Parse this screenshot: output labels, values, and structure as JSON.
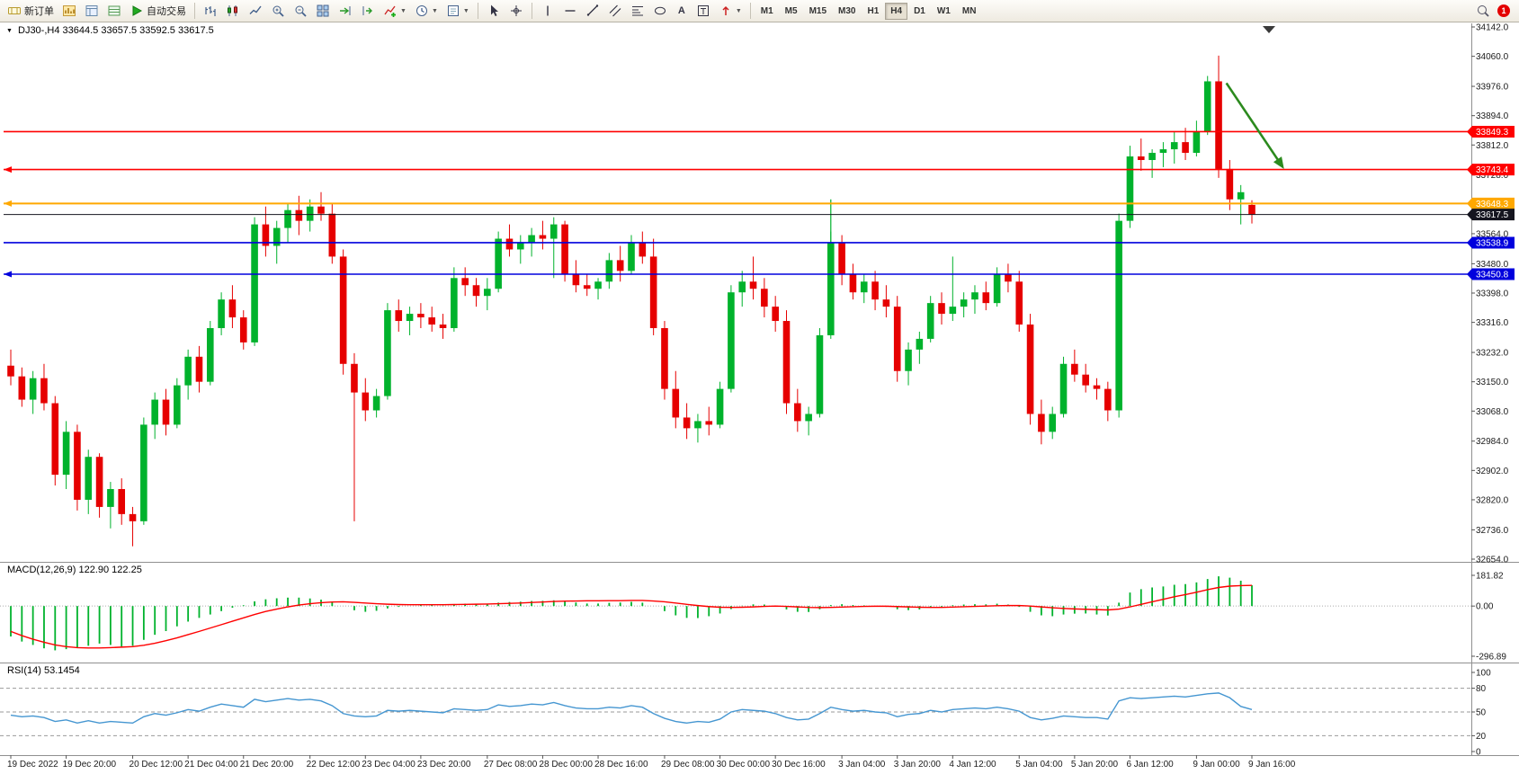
{
  "colors": {
    "up": "#00b22c",
    "down": "#e60000",
    "macd_hist": "#00b22c",
    "macd_signal": "#ff0000",
    "rsi_line": "#4596d1",
    "axis_text": "#1a1a1a",
    "annotation_arrow": "#2c8a1e",
    "annotation_vline": "#00b22c"
  },
  "toolbar": {
    "new_order_label": "新订单",
    "auto_trading_label": "自动交易",
    "timeframes": [
      "M1",
      "M5",
      "M15",
      "M30",
      "H1",
      "H4",
      "D1",
      "W1",
      "MN"
    ],
    "active_timeframe": "H4",
    "notification_count": "1"
  },
  "chart": {
    "title": "DJ30-,H4 33644.5 33657.5 33592.5 33617.5",
    "macd_label": "MACD(12,26,9) 122.90 122.25",
    "rsi_label": "RSI(14) 53.1454"
  },
  "chart_data": {
    "type": "candlestick",
    "symbol": "DJ30-",
    "timeframe": "H4",
    "ohlc_current": {
      "open": 33644.5,
      "high": 33657.5,
      "low": 33592.5,
      "close": 33617.5
    },
    "price_ylim": [
      32654.0,
      34142.0
    ],
    "price_ticks": [
      "34142.0",
      "34060.0",
      "33976.0",
      "33894.0",
      "33812.0",
      "33728.0",
      "33644.0",
      "33564.0",
      "33480.0",
      "33398.0",
      "33316.0",
      "33232.0",
      "33150.0",
      "33068.0",
      "32984.0",
      "32902.0",
      "32820.0",
      "32736.0",
      "32654.0"
    ],
    "hlines": [
      {
        "price": 33849.3,
        "label": "33849.3",
        "color": "#ff0000",
        "width": 1.6,
        "marker": false
      },
      {
        "price": 33743.4,
        "label": "33743.4",
        "color": "#ff0000",
        "width": 1.6,
        "marker": true
      },
      {
        "price": 33648.3,
        "label": "33648.3",
        "color": "#ffa800",
        "width": 2,
        "marker": true
      },
      {
        "price": 33617.5,
        "label": "33617.5",
        "color": "#15151f",
        "width": 1,
        "marker": false
      },
      {
        "price": 33538.9,
        "label": "33538.9",
        "color": "#0000dd",
        "width": 1.6,
        "marker": false
      },
      {
        "price": 33450.8,
        "label": "33450.8",
        "color": "#0000dd",
        "width": 1.6,
        "marker": true
      }
    ],
    "candles": [
      [
        33195,
        33240,
        33140,
        33165
      ],
      [
        33165,
        33190,
        33080,
        33100
      ],
      [
        33100,
        33180,
        33060,
        33160
      ],
      [
        33160,
        33200,
        33070,
        33090
      ],
      [
        33090,
        33110,
        32860,
        32890
      ],
      [
        32890,
        33040,
        32850,
        33010
      ],
      [
        33010,
        33030,
        32790,
        32820
      ],
      [
        32820,
        32960,
        32780,
        32940
      ],
      [
        32940,
        32950,
        32770,
        32800
      ],
      [
        32800,
        32870,
        32740,
        32850
      ],
      [
        32850,
        32880,
        32750,
        32780
      ],
      [
        32780,
        32800,
        32690,
        32760
      ],
      [
        32760,
        33050,
        32750,
        33030
      ],
      [
        33030,
        33120,
        32990,
        33100
      ],
      [
        33100,
        33130,
        33000,
        33030
      ],
      [
        33030,
        33160,
        33020,
        33140
      ],
      [
        33140,
        33240,
        33100,
        33220
      ],
      [
        33220,
        33250,
        33120,
        33150
      ],
      [
        33150,
        33320,
        33140,
        33300
      ],
      [
        33300,
        33400,
        33280,
        33380
      ],
      [
        33380,
        33420,
        33300,
        33330
      ],
      [
        33330,
        33350,
        33240,
        33260
      ],
      [
        33260,
        33610,
        33250,
        33590
      ],
      [
        33590,
        33640,
        33500,
        33530
      ],
      [
        33530,
        33600,
        33480,
        33580
      ],
      [
        33580,
        33650,
        33540,
        33630
      ],
      [
        33630,
        33670,
        33560,
        33600
      ],
      [
        33600,
        33660,
        33570,
        33640
      ],
      [
        33640,
        33680,
        33600,
        33620
      ],
      [
        33620,
        33650,
        33480,
        33500
      ],
      [
        33500,
        33520,
        33170,
        33200
      ],
      [
        33200,
        33230,
        32760,
        33120
      ],
      [
        33120,
        33160,
        33040,
        33070
      ],
      [
        33070,
        33130,
        33050,
        33110
      ],
      [
        33110,
        33370,
        33100,
        33350
      ],
      [
        33350,
        33380,
        33290,
        33320
      ],
      [
        33320,
        33360,
        33280,
        33340
      ],
      [
        33340,
        33370,
        33300,
        33330
      ],
      [
        33330,
        33360,
        33290,
        33310
      ],
      [
        33310,
        33340,
        33270,
        33300
      ],
      [
        33300,
        33470,
        33290,
        33440
      ],
      [
        33440,
        33470,
        33390,
        33420
      ],
      [
        33420,
        33440,
        33360,
        33390
      ],
      [
        33390,
        33440,
        33350,
        33410
      ],
      [
        33410,
        33570,
        33400,
        33550
      ],
      [
        33550,
        33590,
        33500,
        33520
      ],
      [
        33520,
        33560,
        33480,
        33540
      ],
      [
        33540,
        33580,
        33500,
        33560
      ],
      [
        33560,
        33600,
        33520,
        33550
      ],
      [
        33550,
        33610,
        33440,
        33590
      ],
      [
        33590,
        33600,
        33430,
        33450
      ],
      [
        33450,
        33490,
        33400,
        33420
      ],
      [
        33420,
        33450,
        33390,
        33410
      ],
      [
        33410,
        33440,
        33380,
        33430
      ],
      [
        33430,
        33510,
        33410,
        33490
      ],
      [
        33490,
        33530,
        33430,
        33460
      ],
      [
        33460,
        33560,
        33450,
        33540
      ],
      [
        33540,
        33570,
        33480,
        33500
      ],
      [
        33500,
        33550,
        33280,
        33300
      ],
      [
        33300,
        33320,
        33100,
        33130
      ],
      [
        33130,
        33180,
        33020,
        33050
      ],
      [
        33050,
        33090,
        32990,
        33020
      ],
      [
        33020,
        33060,
        32980,
        33040
      ],
      [
        33040,
        33080,
        33000,
        33030
      ],
      [
        33030,
        33150,
        33020,
        33130
      ],
      [
        33130,
        33420,
        33120,
        33400
      ],
      [
        33400,
        33460,
        33360,
        33430
      ],
      [
        33430,
        33500,
        33380,
        33410
      ],
      [
        33410,
        33440,
        33330,
        33360
      ],
      [
        33360,
        33390,
        33290,
        33320
      ],
      [
        33320,
        33350,
        33060,
        33090
      ],
      [
        33090,
        33130,
        33010,
        33040
      ],
      [
        33040,
        33080,
        33000,
        33060
      ],
      [
        33060,
        33300,
        33050,
        33280
      ],
      [
        33280,
        33570,
        33270,
        33540
      ],
      [
        33540,
        33560,
        33420,
        33450
      ],
      [
        33450,
        33480,
        33380,
        33400
      ],
      [
        33400,
        33450,
        33370,
        33430
      ],
      [
        33430,
        33460,
        33350,
        33380
      ],
      [
        33380,
        33420,
        33330,
        33360
      ],
      [
        33360,
        33390,
        33150,
        33180
      ],
      [
        33180,
        33260,
        33140,
        33240
      ],
      [
        33240,
        33290,
        33200,
        33270
      ],
      [
        33270,
        33390,
        33260,
        33370
      ],
      [
        33370,
        33400,
        33310,
        33340
      ],
      [
        33340,
        33500,
        33320,
        33360
      ],
      [
        33360,
        33400,
        33330,
        33380
      ],
      [
        33380,
        33420,
        33340,
        33400
      ],
      [
        33400,
        33430,
        33350,
        33370
      ],
      [
        33370,
        33470,
        33360,
        33450
      ],
      [
        33450,
        33480,
        33400,
        33430
      ],
      [
        33430,
        33460,
        33290,
        33310
      ],
      [
        33310,
        33340,
        33030,
        33060
      ],
      [
        33060,
        33100,
        32975,
        33010
      ],
      [
        33010,
        33080,
        32990,
        33060
      ],
      [
        33060,
        33220,
        33050,
        33200
      ],
      [
        33200,
        33240,
        33150,
        33170
      ],
      [
        33170,
        33200,
        33120,
        33140
      ],
      [
        33140,
        33160,
        33100,
        33130
      ],
      [
        33130,
        33150,
        33040,
        33070
      ],
      [
        33070,
        33620,
        33050,
        33600
      ],
      [
        33600,
        33810,
        33580,
        33780
      ],
      [
        33780,
        33830,
        33740,
        33770
      ],
      [
        33770,
        33800,
        33720,
        33790
      ],
      [
        33790,
        33820,
        33750,
        33800
      ],
      [
        33800,
        33850,
        33760,
        33820
      ],
      [
        33820,
        33860,
        33770,
        33790
      ],
      [
        33790,
        33880,
        33780,
        33850
      ],
      [
        33850,
        34005,
        33840,
        33990
      ],
      [
        33990,
        34062,
        33720,
        33745
      ],
      [
        33745,
        33770,
        33630,
        33660
      ],
      [
        33660,
        33700,
        33590,
        33680
      ],
      [
        33644.5,
        33657.5,
        33592.5,
        33617.5
      ]
    ],
    "time_labels": [
      "19 Dec 2022",
      "19 Dec 20:00",
      "20 Dec 12:00",
      "21 Dec 04:00",
      "21 Dec 20:00",
      "22 Dec 12:00",
      "23 Dec 04:00",
      "23 Dec 20:00",
      "27 Dec 08:00",
      "28 Dec 00:00",
      "28 Dec 16:00",
      "29 Dec 08:00",
      "30 Dec 00:00",
      "30 Dec 16:00",
      "3 Jan 04:00",
      "3 Jan 20:00",
      "4 Jan 12:00",
      "5 Jan 04:00",
      "5 Jan 20:00",
      "6 Jan 12:00",
      "9 Jan 00:00",
      "9 Jan 16:00"
    ],
    "macd": {
      "ylim": [
        -296.89,
        181.82
      ],
      "ticks": [
        "181.82",
        "0.00",
        "-296.89"
      ],
      "histogram": [
        -180,
        -210,
        -230,
        -250,
        -262,
        -255,
        -245,
        -235,
        -222,
        -230,
        -240,
        -235,
        -200,
        -170,
        -148,
        -120,
        -92,
        -70,
        -50,
        -30,
        -10,
        5,
        28,
        40,
        46,
        50,
        50,
        45,
        38,
        22,
        0,
        -25,
        -34,
        -28,
        -14,
        -5,
        0,
        5,
        6,
        2,
        10,
        14,
        11,
        10,
        20,
        24,
        26,
        30,
        31,
        34,
        30,
        21,
        15,
        15,
        19,
        21,
        25,
        20,
        0,
        -30,
        -55,
        -70,
        -71,
        -60,
        -44,
        -18,
        2,
        10,
        9,
        1,
        -20,
        -34,
        -35,
        -19,
        6,
        11,
        6,
        4,
        0,
        -5,
        -19,
        -24,
        -20,
        -10,
        -4,
        5,
        9,
        11,
        10,
        14,
        9,
        -5,
        -34,
        -55,
        -60,
        -50,
        -45,
        -44,
        -50,
        -56,
        20,
        80,
        100,
        110,
        116,
        126,
        130,
        140,
        160,
        176,
        168,
        150,
        122.9
      ],
      "signal": [
        -150,
        -175,
        -196,
        -214,
        -230,
        -240,
        -246,
        -248,
        -248,
        -246,
        -243,
        -240,
        -232,
        -220,
        -205,
        -188,
        -169,
        -150,
        -130,
        -110,
        -90,
        -70,
        -50,
        -32,
        -18,
        -5,
        6,
        14,
        20,
        24,
        25,
        22,
        18,
        14,
        11,
        9,
        8,
        8,
        8,
        8,
        9,
        10,
        11,
        12,
        14,
        16,
        18,
        21,
        24,
        27,
        29,
        30,
        31,
        31,
        32,
        32,
        33,
        33,
        30,
        25,
        18,
        10,
        3,
        -3,
        -7,
        -8,
        -7,
        -5,
        -2,
        0,
        -2,
        -5,
        -8,
        -9,
        -8,
        -6,
        -4,
        -2,
        -1,
        -1,
        -3,
        -5,
        -7,
        -8,
        -8,
        -6,
        -4,
        -2,
        0,
        2,
        3,
        3,
        0,
        -5,
        -10,
        -14,
        -17,
        -19,
        -21,
        -23,
        -18,
        -5,
        10,
        25,
        40,
        55,
        68,
        82,
        97,
        110,
        118,
        121,
        122.25
      ]
    },
    "rsi": {
      "ylim": [
        0,
        100
      ],
      "ticks": [
        "100",
        "80",
        "50",
        "20",
        "0"
      ],
      "levels": [
        80,
        50,
        20
      ],
      "values": [
        46,
        44,
        45,
        43,
        38,
        40,
        36,
        39,
        36,
        38,
        37,
        36,
        44,
        48,
        46,
        49,
        53,
        51,
        56,
        60,
        58,
        56,
        66,
        63,
        65,
        67,
        65,
        66,
        64,
        58,
        48,
        45,
        44,
        45,
        52,
        51,
        52,
        51,
        50,
        49,
        54,
        53,
        52,
        53,
        59,
        57,
        58,
        60,
        59,
        62,
        58,
        55,
        54,
        54,
        56,
        55,
        58,
        56,
        48,
        42,
        38,
        36,
        38,
        37,
        41,
        50,
        53,
        52,
        51,
        48,
        43,
        40,
        41,
        48,
        56,
        53,
        51,
        52,
        50,
        49,
        44,
        47,
        48,
        52,
        50,
        53,
        54,
        55,
        54,
        56,
        54,
        51,
        43,
        40,
        42,
        45,
        44,
        43,
        43,
        41,
        64,
        68,
        67,
        68,
        69,
        70,
        69,
        71,
        73,
        74,
        68,
        57,
        53.1
      ]
    },
    "annotations": {
      "arrow": {
        "from_bar": 109.7,
        "from_price": 33985,
        "to_bar": 114.9,
        "to_price": 33745
      },
      "vline": {
        "bar": 74,
        "price_top": 33660,
        "price_bottom": 33425
      }
    }
  }
}
